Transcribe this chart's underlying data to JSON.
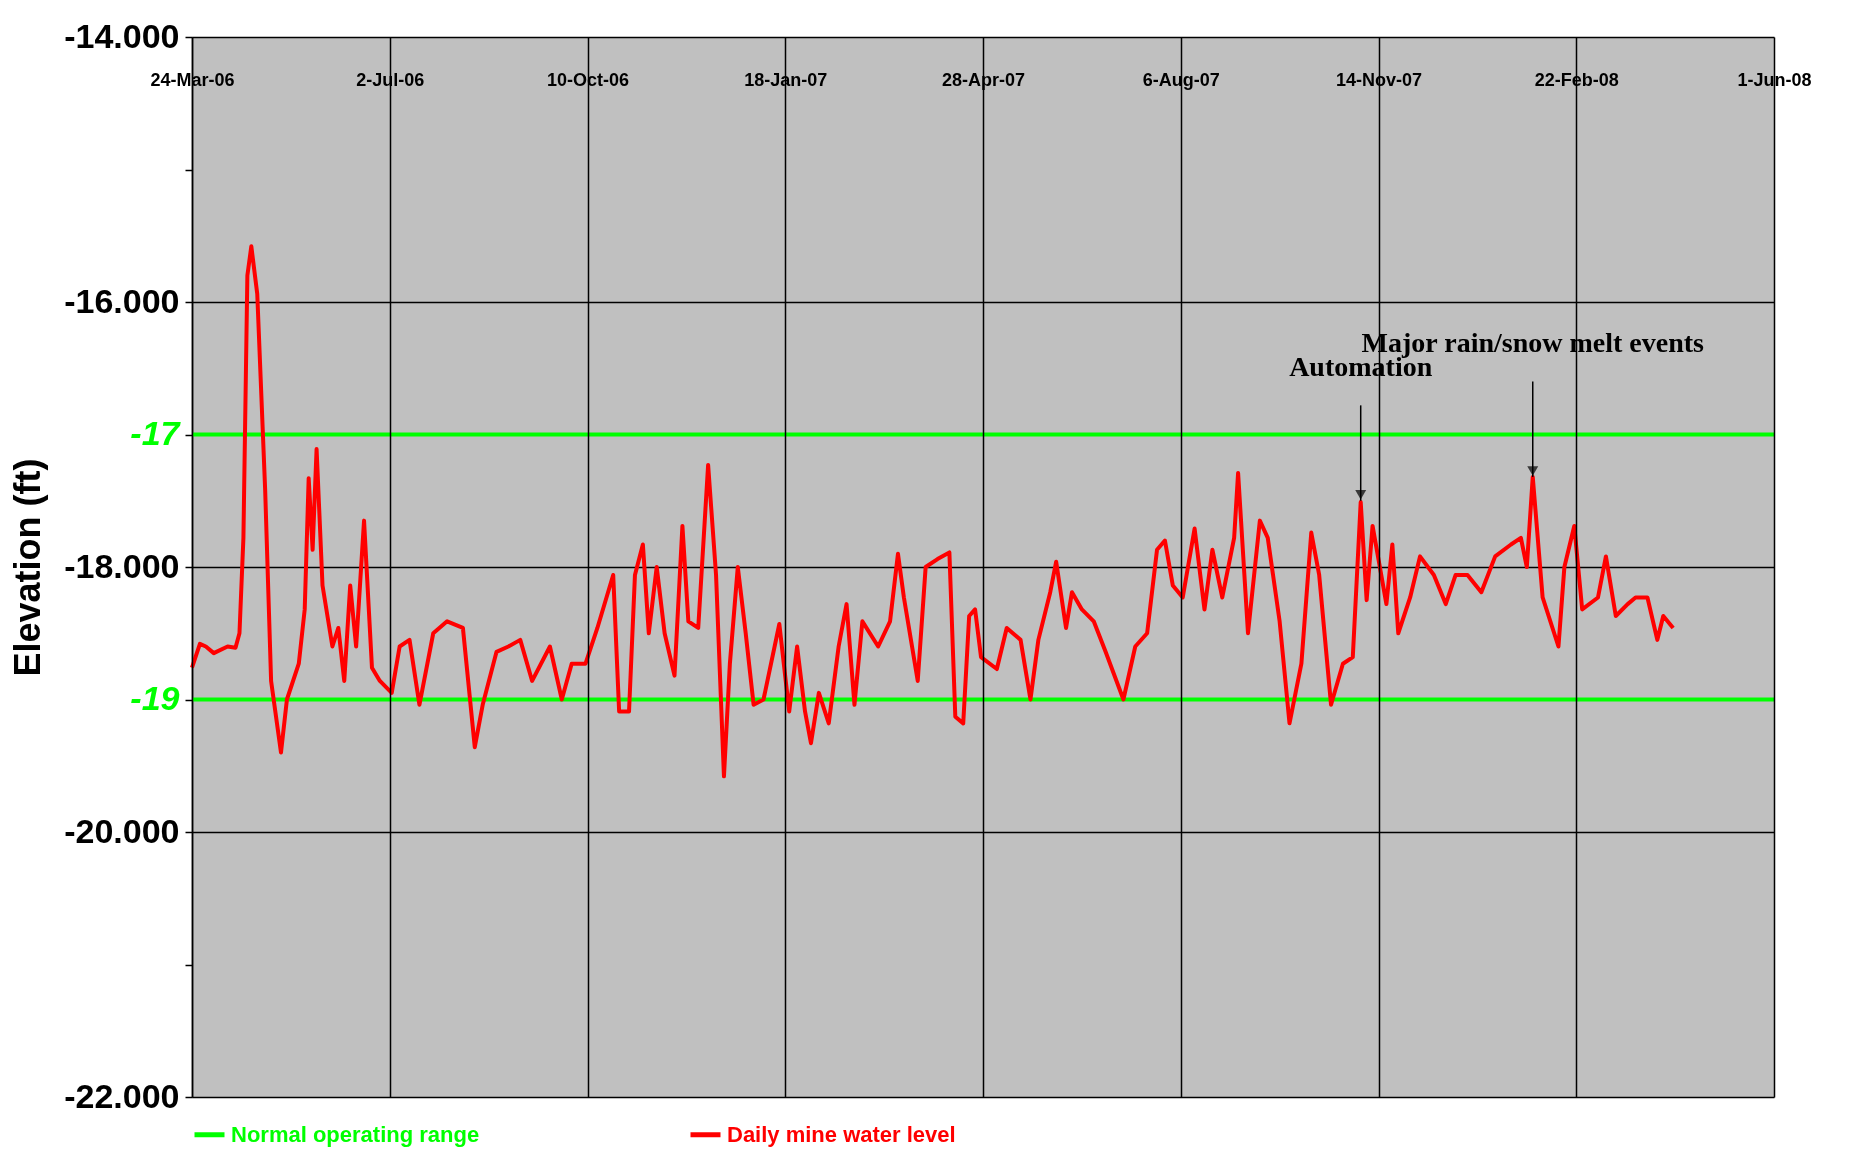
{
  "chart_data": {
    "type": "line",
    "ylabel": "Elevation (ft)",
    "xlim": [
      "2006-03-24",
      "2008-06-01"
    ],
    "xticks": [
      {
        "value": "2006-03-24",
        "label": "24-Mar-06"
      },
      {
        "value": "2006-07-02",
        "label": "2-Jul-06"
      },
      {
        "value": "2006-10-10",
        "label": "10-Oct-06"
      },
      {
        "value": "2007-01-18",
        "label": "18-Jan-07"
      },
      {
        "value": "2007-04-28",
        "label": "28-Apr-07"
      },
      {
        "value": "2007-08-06",
        "label": "6-Aug-07"
      },
      {
        "value": "2007-11-14",
        "label": "14-Nov-07"
      },
      {
        "value": "2008-02-22",
        "label": "22-Feb-08"
      },
      {
        "value": "2008-06-01",
        "label": "1-Jun-08"
      }
    ],
    "ylim": [
      -22,
      -14
    ],
    "yticks": [
      {
        "value": -14,
        "label": "-14.000"
      },
      {
        "value": -15,
        "label": null
      },
      {
        "value": -16,
        "label": "-16.000"
      },
      {
        "value": -17,
        "label": "-17"
      },
      {
        "value": -18,
        "label": "-18.000"
      },
      {
        "value": -19,
        "label": "-19"
      },
      {
        "value": -20,
        "label": "-20.000"
      },
      {
        "value": -21,
        "label": null
      },
      {
        "value": -22,
        "label": "-22.000"
      }
    ],
    "grid": true,
    "legend": "bottom",
    "line_style": "solid",
    "annotations": [
      {
        "text": "Automation",
        "x": "2007-11-05",
        "y": -17.5
      },
      {
        "text": "Major rain/snow melt events",
        "x": "2008-01-31",
        "y": -17.32
      }
    ],
    "series": [
      {
        "name": "Normal operating range",
        "color": "#00ff00",
        "x": [
          "2006-03-24",
          "2008-06-01"
        ],
        "values": [
          -17,
          -17
        ]
      },
      {
        "color": "#00ff00",
        "x": [
          "2006-03-24",
          "2008-06-01"
        ],
        "values": [
          -19,
          -19
        ]
      },
      {
        "name": "Daily mine water level",
        "color": "#ff0000",
        "x": [
          "2006-03-24",
          "2006-03-28",
          "2006-03-31",
          "2006-04-04",
          "2006-04-11",
          "2006-04-15",
          "2006-04-17",
          "2006-04-19",
          "2006-04-21",
          "2006-04-23",
          "2006-04-26",
          "2006-04-30",
          "2006-05-03",
          "2006-05-08",
          "2006-05-11",
          "2006-05-17",
          "2006-05-20",
          "2006-05-22",
          "2006-05-24",
          "2006-05-26",
          "2006-05-29",
          "2006-06-03",
          "2006-06-06",
          "2006-06-09",
          "2006-06-12",
          "2006-06-15",
          "2006-06-19",
          "2006-06-23",
          "2006-06-27",
          "2006-07-03",
          "2006-07-07",
          "2006-07-12",
          "2006-07-17",
          "2006-07-24",
          "2006-07-31",
          "2006-08-08",
          "2006-08-14",
          "2006-08-18",
          "2006-08-25",
          "2006-08-31",
          "2006-09-06",
          "2006-09-12",
          "2006-09-21",
          "2006-09-27",
          "2006-10-02",
          "2006-10-09",
          "2006-10-15",
          "2006-10-23",
          "2006-10-26",
          "2006-10-31",
          "2006-11-03",
          "2006-11-07",
          "2006-11-10",
          "2006-11-14",
          "2006-11-18",
          "2006-11-23",
          "2006-11-27",
          "2006-11-30",
          "2006-12-05",
          "2006-12-10",
          "2006-12-14",
          "2006-12-18",
          "2006-12-21",
          "2006-12-25",
          "2006-12-29",
          "2007-01-02",
          "2007-01-07",
          "2007-01-15",
          "2007-01-20",
          "2007-01-24",
          "2007-01-28",
          "2007-01-31",
          "2007-02-04",
          "2007-02-09",
          "2007-02-14",
          "2007-02-18",
          "2007-02-22",
          "2007-02-26",
          "2007-03-06",
          "2007-03-12",
          "2007-03-16",
          "2007-03-19",
          "2007-03-26",
          "2007-03-30",
          "2007-04-05",
          "2007-04-11",
          "2007-04-14",
          "2007-04-18",
          "2007-04-21",
          "2007-04-24",
          "2007-04-27",
          "2007-05-05",
          "2007-05-10",
          "2007-05-17",
          "2007-05-22",
          "2007-05-26",
          "2007-06-01",
          "2007-06-04",
          "2007-06-09",
          "2007-06-12",
          "2007-06-17",
          "2007-06-23",
          "2007-06-29",
          "2007-07-08",
          "2007-07-14",
          "2007-07-20",
          "2007-07-25",
          "2007-07-29",
          "2007-08-02",
          "2007-08-07",
          "2007-08-13",
          "2007-08-18",
          "2007-08-22",
          "2007-08-27",
          "2007-09-02",
          "2007-09-04",
          "2007-09-09",
          "2007-09-15",
          "2007-09-19",
          "2007-09-25",
          "2007-09-30",
          "2007-10-06",
          "2007-10-11",
          "2007-10-15",
          "2007-10-21",
          "2007-10-27",
          "2007-11-01",
          "2007-11-05",
          "2007-11-08",
          "2007-11-11",
          "2007-11-18",
          "2007-11-21",
          "2007-11-24",
          "2007-11-30",
          "2007-12-05",
          "2007-12-12",
          "2007-12-18",
          "2007-12-23",
          "2007-12-29",
          "2008-01-05",
          "2008-01-12",
          "2008-01-20",
          "2008-01-25",
          "2008-01-28",
          "2008-01-31",
          "2008-02-05",
          "2008-02-13",
          "2008-02-16",
          "2008-02-21",
          "2008-02-25",
          "2008-03-04",
          "2008-03-08",
          "2008-03-13",
          "2008-03-19",
          "2008-03-23",
          "2008-03-29",
          "2008-04-03",
          "2008-04-06",
          "2008-04-11"
        ],
        "values": [
          -18.76,
          -18.58,
          -18.6,
          -18.65,
          -18.6,
          -18.61,
          -18.5,
          -17.78,
          -15.8,
          -15.58,
          -15.94,
          -17.42,
          -18.86,
          -19.4,
          -19.0,
          -18.73,
          -18.32,
          -17.33,
          -17.87,
          -17.11,
          -18.14,
          -18.6,
          -18.46,
          -18.86,
          -18.14,
          -18.6,
          -17.65,
          -18.76,
          -18.86,
          -18.95,
          -18.6,
          -18.55,
          -19.04,
          -18.5,
          -18.41,
          -18.46,
          -19.36,
          -19.04,
          -18.64,
          -18.6,
          -18.55,
          -18.86,
          -18.6,
          -19.0,
          -18.73,
          -18.73,
          -18.46,
          -18.06,
          -19.09,
          -19.09,
          -18.06,
          -17.83,
          -18.5,
          -18.0,
          -18.5,
          -18.82,
          -17.69,
          -18.41,
          -18.46,
          -17.23,
          -18.06,
          -19.58,
          -18.73,
          -18.0,
          -18.5,
          -19.04,
          -19.0,
          -18.43,
          -19.09,
          -18.6,
          -19.09,
          -19.33,
          -18.95,
          -19.18,
          -18.6,
          -18.28,
          -19.04,
          -18.41,
          -18.6,
          -18.41,
          -17.9,
          -18.23,
          -18.86,
          -18.0,
          -17.94,
          -17.89,
          -19.13,
          -19.18,
          -18.37,
          -18.32,
          -18.68,
          -18.77,
          -18.46,
          -18.55,
          -19.0,
          -18.55,
          -18.19,
          -17.96,
          -18.46,
          -18.19,
          -18.32,
          -18.41,
          -18.64,
          -19.0,
          -18.6,
          -18.5,
          -17.87,
          -17.8,
          -18.14,
          -18.23,
          -17.71,
          -18.32,
          -17.87,
          -18.23,
          -17.78,
          -17.29,
          -18.5,
          -17.65,
          -17.78,
          -18.41,
          -19.18,
          -18.73,
          -17.74,
          -18.06,
          -19.04,
          -18.73,
          -18.68,
          -17.51,
          -18.25,
          -17.69,
          -18.28,
          -17.83,
          -18.5,
          -18.23,
          -17.92,
          -18.06,
          -18.28,
          -18.06,
          -18.06,
          -18.19,
          -17.92,
          -17.83,
          -17.78,
          -18.0,
          -17.32,
          -18.23,
          -18.6,
          -18.0,
          -17.69,
          -18.32,
          -18.23,
          -17.92,
          -18.37,
          -18.28,
          -18.23,
          -18.23,
          -18.55,
          -18.37,
          -18.46
        ]
      }
    ]
  }
}
